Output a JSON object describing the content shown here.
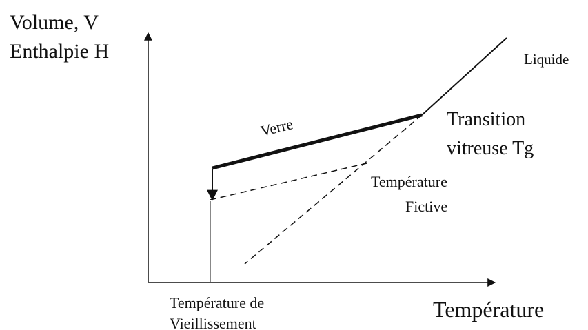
{
  "axes": {
    "y_label": [
      "Volume, V",
      "Enthalpie H"
    ],
    "x_label": "Température"
  },
  "labels": {
    "liquid": "Liquide",
    "glass": "Verre",
    "transition": [
      "Transition",
      "vitreuse Tg"
    ],
    "fictive": [
      "Température",
      "Fictive"
    ],
    "aging": [
      "Température de",
      "Vieillissement"
    ]
  }
}
